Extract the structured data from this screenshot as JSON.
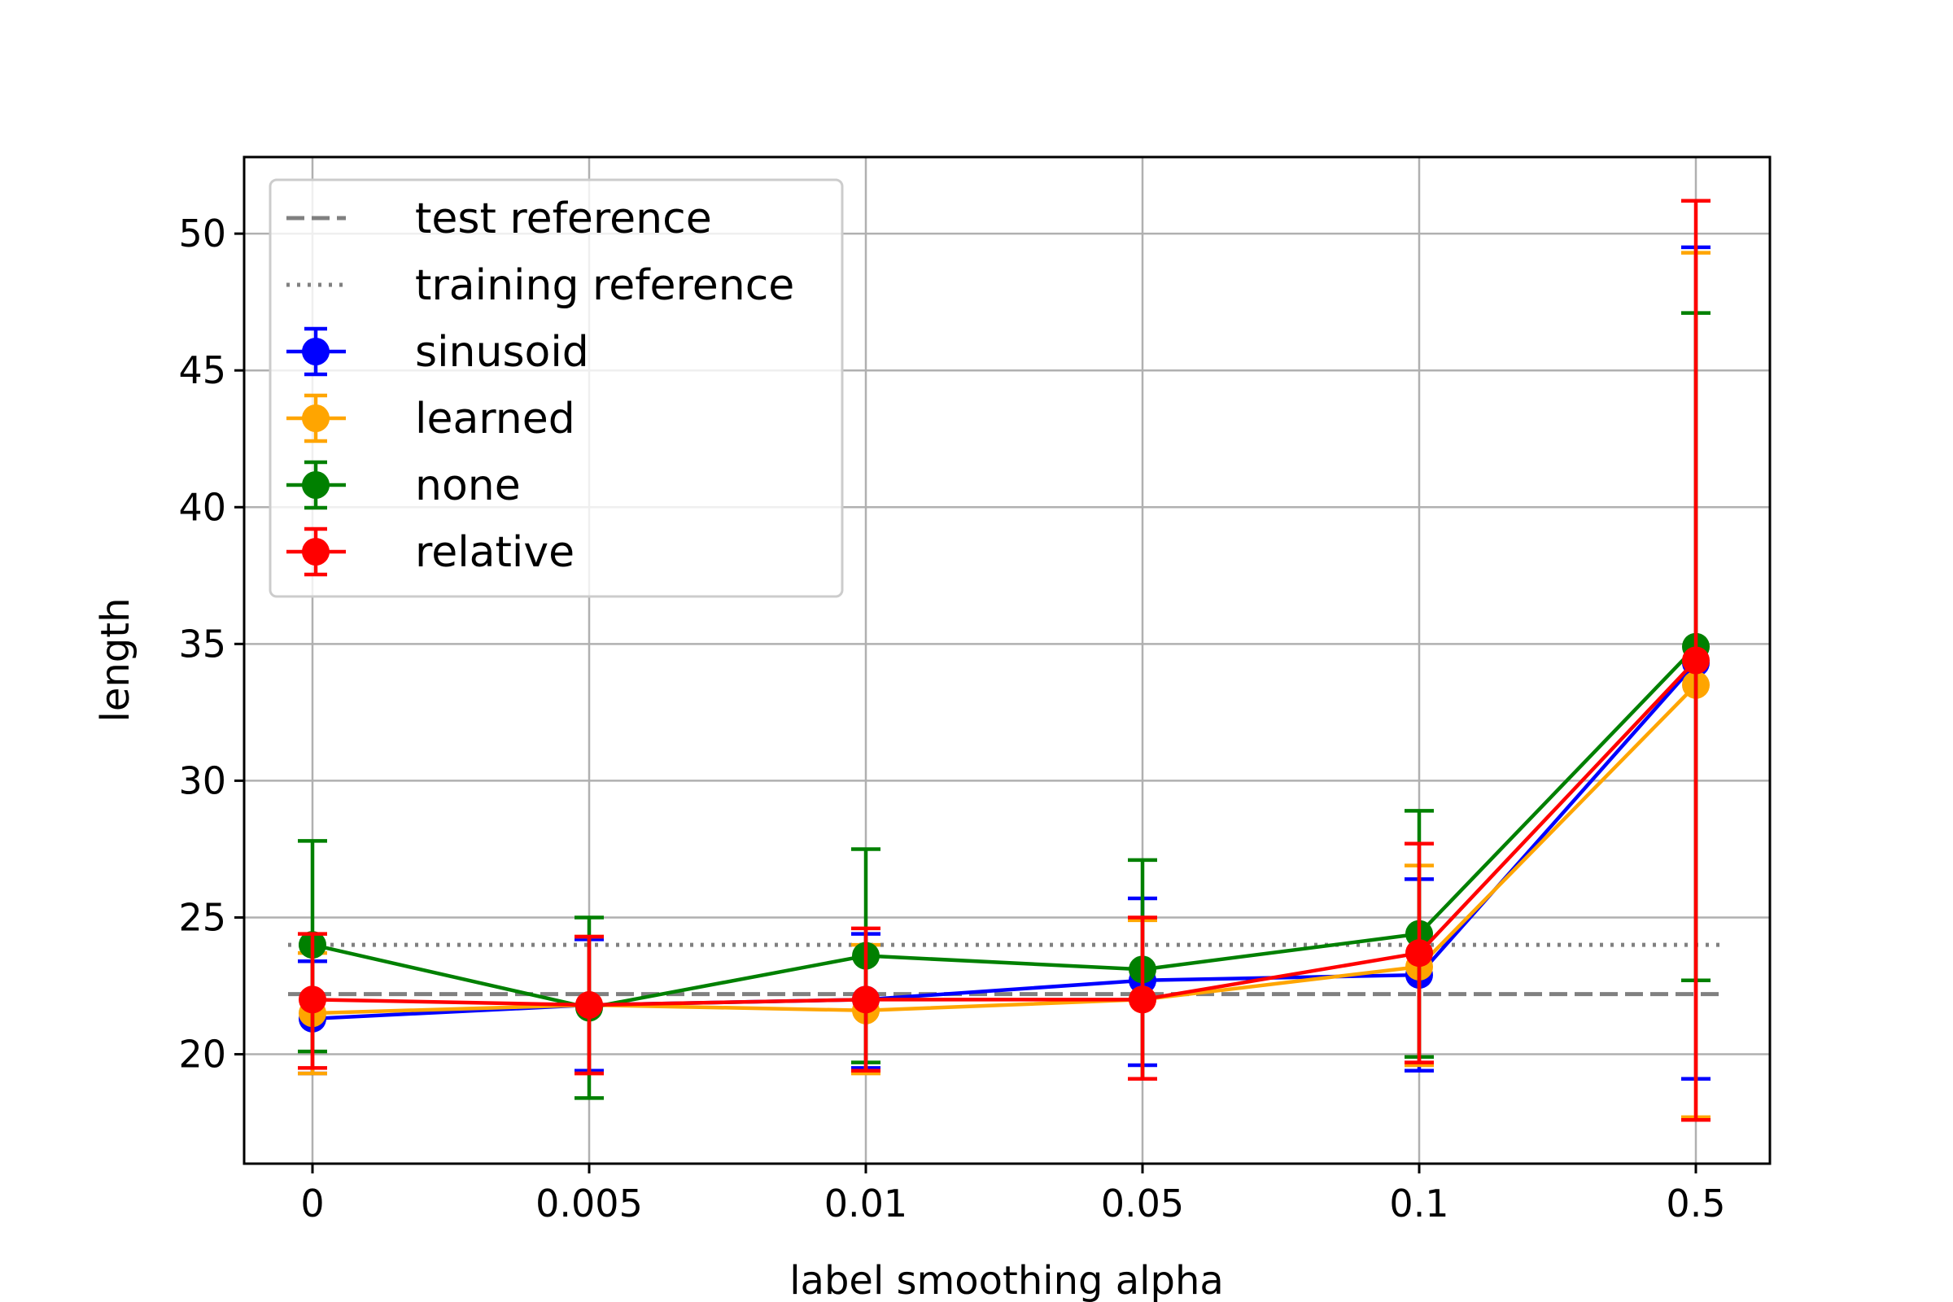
{
  "chart_data": {
    "type": "line",
    "title": "",
    "xlabel": "label smoothing alpha",
    "ylabel": "length",
    "categories": [
      "0",
      "0.005",
      "0.01",
      "0.05",
      "0.1",
      "0.5"
    ],
    "ylim": [
      16,
      52.8
    ],
    "yticks": [
      20,
      25,
      30,
      35,
      40,
      45,
      50
    ],
    "grid": true,
    "legend_position": "top-left",
    "references": [
      {
        "name": "test reference",
        "value": 22.2,
        "style": "dashed",
        "color": "#808080"
      },
      {
        "name": "training reference",
        "value": 24.0,
        "style": "dotted",
        "color": "#808080"
      }
    ],
    "series": [
      {
        "name": "sinusoid",
        "color": "#0000ff",
        "values": [
          21.3,
          21.8,
          22.0,
          22.7,
          22.9,
          34.3
        ],
        "err_low": [
          19.3,
          19.4,
          19.5,
          19.6,
          19.4,
          19.1
        ],
        "err_high": [
          23.4,
          24.2,
          24.4,
          25.7,
          26.4,
          49.5
        ]
      },
      {
        "name": "learned",
        "color": "#ffa500",
        "values": [
          21.5,
          21.8,
          21.6,
          22.0,
          23.2,
          33.5
        ],
        "err_low": [
          19.3,
          19.3,
          19.3,
          19.1,
          19.6,
          17.7
        ],
        "err_high": [
          23.7,
          24.3,
          24.0,
          24.9,
          26.9,
          49.3
        ]
      },
      {
        "name": "none",
        "color": "#008000",
        "values": [
          24.0,
          21.7,
          23.6,
          23.1,
          24.4,
          34.9
        ],
        "err_low": [
          20.1,
          18.4,
          19.7,
          19.1,
          19.9,
          22.7
        ],
        "err_high": [
          27.8,
          25.0,
          27.5,
          27.1,
          28.9,
          47.1
        ]
      },
      {
        "name": "relative",
        "color": "#ff0000",
        "values": [
          22.0,
          21.8,
          22.0,
          22.0,
          23.7,
          34.4
        ],
        "err_low": [
          19.5,
          19.3,
          19.4,
          19.1,
          19.7,
          17.6
        ],
        "err_high": [
          24.4,
          24.3,
          24.6,
          25.0,
          27.7,
          51.2
        ]
      }
    ]
  }
}
